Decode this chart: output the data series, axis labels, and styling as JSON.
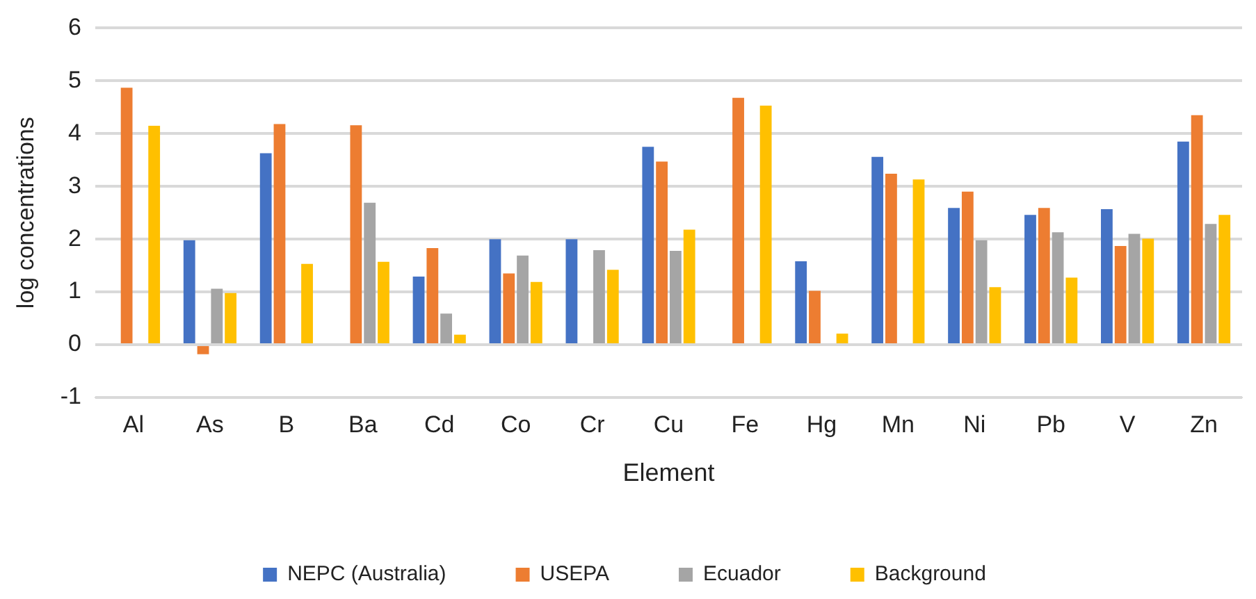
{
  "chart_data": {
    "type": "bar",
    "xlabel": "Element",
    "ylabel": "log concentrations",
    "categories": [
      "Al",
      "As",
      "B",
      "Ba",
      "Cd",
      "Co",
      "Cr",
      "Cu",
      "Fe",
      "Hg",
      "Mn",
      "Ni",
      "Pb",
      "V",
      "Zn"
    ],
    "series": [
      {
        "name": "NEPC (Australia)",
        "color": "#4472c4",
        "values": [
          null,
          1.98,
          3.63,
          null,
          1.29,
          2.0,
          2.0,
          3.75,
          null,
          1.58,
          3.56,
          2.59,
          2.46,
          2.57,
          3.85
        ]
      },
      {
        "name": "USEPA",
        "color": "#ed7d31",
        "values": [
          4.87,
          -0.18,
          4.18,
          4.16,
          1.83,
          1.35,
          null,
          3.47,
          4.68,
          1.02,
          3.24,
          2.9,
          2.59,
          1.87,
          4.35
        ]
      },
      {
        "name": "Ecuador",
        "color": "#a5a5a5",
        "values": [
          null,
          1.06,
          null,
          2.69,
          0.59,
          1.69,
          1.79,
          1.78,
          null,
          null,
          null,
          1.98,
          2.13,
          2.1,
          2.29
        ]
      },
      {
        "name": "Background",
        "color": "#ffc000",
        "values": [
          4.15,
          0.98,
          1.53,
          1.57,
          0.19,
          1.19,
          1.42,
          2.18,
          4.53,
          0.21,
          3.13,
          1.09,
          1.27,
          2.01,
          2.46
        ]
      }
    ],
    "ylim": [
      -1,
      6
    ],
    "yticks": [
      -1,
      0,
      1,
      2,
      3,
      4,
      5,
      6
    ],
    "grid": "y",
    "legend": "bottom"
  }
}
